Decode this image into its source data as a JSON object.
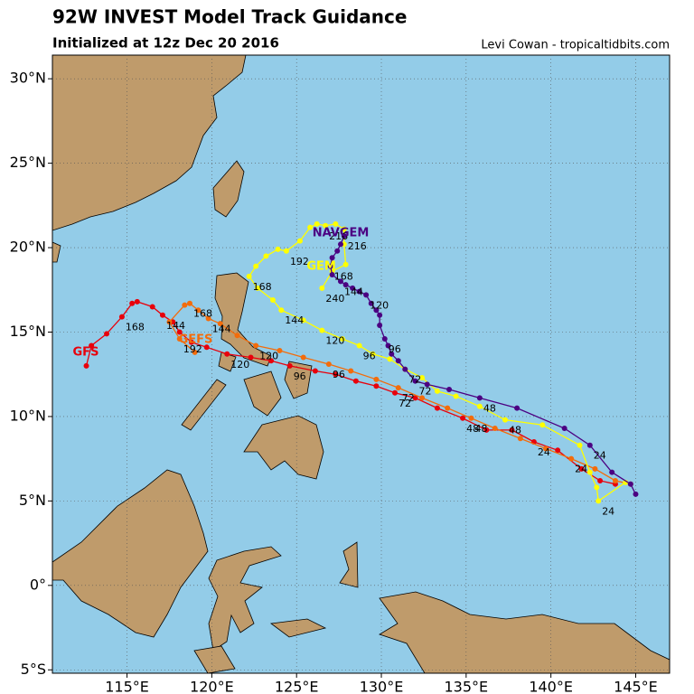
{
  "chart_data": {
    "type": "track-map",
    "title": "92W INVEST Model Track Guidance",
    "subtitle": "Initialized at 12z Dec 20 2016",
    "credit": "Levi Cowan - tropicaltidbits.com",
    "xlim": [
      110.6,
      147.0
    ],
    "ylim": [
      -5.2,
      31.4
    ],
    "xticks": [
      {
        "value": 115,
        "label": "115°E"
      },
      {
        "value": 120,
        "label": "120°E"
      },
      {
        "value": 125,
        "label": "125°E"
      },
      {
        "value": 130,
        "label": "130°E"
      },
      {
        "value": 135,
        "label": "135°E"
      },
      {
        "value": 140,
        "label": "140°E"
      },
      {
        "value": 145,
        "label": "145°E"
      }
    ],
    "yticks": [
      {
        "value": -5,
        "label": "5°S"
      },
      {
        "value": 0,
        "label": "0°"
      },
      {
        "value": 5,
        "label": "5°N"
      },
      {
        "value": 10,
        "label": "10°N"
      },
      {
        "value": 15,
        "label": "15°N"
      },
      {
        "value": 20,
        "label": "20°N"
      },
      {
        "value": 25,
        "label": "25°N"
      },
      {
        "value": 30,
        "label": "30°N"
      }
    ],
    "grid": true,
    "series": [
      {
        "name": "GFS",
        "color": "#e8000b",
        "lon": [
          143.8,
          142.9,
          141.8,
          140.4,
          139.0,
          137.7,
          136.2,
          134.8,
          133.3,
          132.0,
          130.8,
          129.7,
          128.5,
          127.3,
          126.1,
          124.6,
          123.5,
          122.3,
          120.9,
          119.7,
          118.8,
          118.1,
          117.7,
          117.1,
          116.5,
          115.6,
          115.3,
          114.7,
          113.8,
          112.9,
          112.6
        ],
        "lat": [
          6.0,
          6.2,
          6.9,
          8.0,
          8.5,
          9.2,
          9.2,
          9.9,
          10.5,
          11.1,
          11.4,
          11.8,
          12.1,
          12.5,
          12.7,
          13.0,
          13.3,
          13.5,
          13.7,
          14.1,
          14.4,
          15.0,
          15.6,
          16.0,
          16.5,
          16.8,
          16.7,
          15.9,
          14.9,
          14.2,
          13.0
        ],
        "hours": [
          null,
          null,
          null,
          null,
          24,
          null,
          null,
          48,
          null,
          null,
          72,
          null,
          null,
          null,
          null,
          96,
          null,
          null,
          120,
          null,
          null,
          null,
          null,
          144,
          null,
          null,
          null,
          168,
          null,
          null,
          null
        ]
      },
      {
        "name": "GEFS",
        "color": "#f36c0b",
        "lon": [
          144.7,
          143.8,
          142.6,
          141.2,
          139.7,
          138.2,
          136.7,
          135.3,
          133.9,
          132.4,
          131.0,
          129.7,
          128.2,
          126.9,
          125.4,
          124.0,
          122.6,
          121.5,
          120.5,
          119.8,
          119.2,
          118.7,
          118.4,
          117.5,
          118.1,
          119.0
        ],
        "lat": [
          6.0,
          6.2,
          6.9,
          7.5,
          8.1,
          8.7,
          9.3,
          9.9,
          10.5,
          11.1,
          11.7,
          12.2,
          12.7,
          13.1,
          13.5,
          13.9,
          14.2,
          14.8,
          15.5,
          15.8,
          16.3,
          16.7,
          16.6,
          15.6,
          14.6,
          13.8
        ],
        "hours": [
          null,
          null,
          null,
          24,
          null,
          null,
          null,
          48,
          null,
          null,
          72,
          null,
          null,
          96,
          null,
          null,
          120,
          null,
          null,
          144,
          null,
          168,
          null,
          null,
          192,
          null
        ]
      },
      {
        "name": "GEM",
        "color": "#ffff00",
        "lon": [
          144.4,
          142.8,
          142.7,
          142.3,
          141.7,
          139.5,
          137.3,
          135.8,
          134.4,
          133.3,
          132.4,
          131.4,
          130.5,
          129.5,
          128.7,
          127.7,
          126.5,
          125.4,
          124.1,
          123.6,
          122.7,
          122.2,
          122.6,
          123.2,
          123.9,
          124.4,
          125.2,
          125.8,
          126.2,
          126.7,
          127.3,
          127.8,
          127.8,
          127.9,
          127.1,
          126.5
        ],
        "lat": [
          6.1,
          5.0,
          5.8,
          6.7,
          8.3,
          9.5,
          9.8,
          10.6,
          11.2,
          11.5,
          12.3,
          12.8,
          13.4,
          13.7,
          14.2,
          14.6,
          15.1,
          15.7,
          16.3,
          16.9,
          17.6,
          18.3,
          18.9,
          19.5,
          19.9,
          19.8,
          20.4,
          21.2,
          21.4,
          21.3,
          21.4,
          21.1,
          20.2,
          19.0,
          18.6,
          17.6
        ],
        "hours": [
          null,
          24,
          null,
          null,
          null,
          null,
          48,
          null,
          null,
          null,
          null,
          72,
          null,
          null,
          96,
          null,
          120,
          null,
          144,
          null,
          null,
          168,
          null,
          null,
          null,
          192,
          null,
          null,
          null,
          216,
          null,
          null,
          null,
          null,
          null,
          240
        ]
      },
      {
        "name": "NAVGEM",
        "color": "#4b0082",
        "lon": [
          145.0,
          144.7,
          143.6,
          142.3,
          140.8,
          138.0,
          135.8,
          134.0,
          132.7,
          132.0,
          131.4,
          131.0,
          130.6,
          130.4,
          130.2,
          129.9,
          129.9,
          129.7,
          129.4,
          129.1,
          128.7,
          128.3,
          127.9,
          127.6,
          127.1,
          127.0,
          127.1,
          127.4,
          127.6,
          127.8
        ],
        "lat": [
          5.4,
          6.0,
          6.7,
          8.3,
          9.3,
          10.5,
          11.1,
          11.6,
          11.9,
          12.1,
          12.8,
          13.3,
          13.7,
          14.2,
          14.6,
          15.4,
          16.0,
          16.3,
          16.7,
          17.2,
          17.4,
          17.6,
          17.8,
          18.0,
          18.4,
          18.9,
          19.4,
          19.8,
          20.2,
          20.7
        ],
        "hours": [
          null,
          null,
          null,
          24,
          null,
          null,
          48,
          null,
          null,
          72,
          null,
          null,
          null,
          null,
          96,
          null,
          null,
          null,
          null,
          120,
          null,
          null,
          null,
          144,
          null,
          168,
          null,
          null,
          null,
          216
        ]
      }
    ]
  }
}
